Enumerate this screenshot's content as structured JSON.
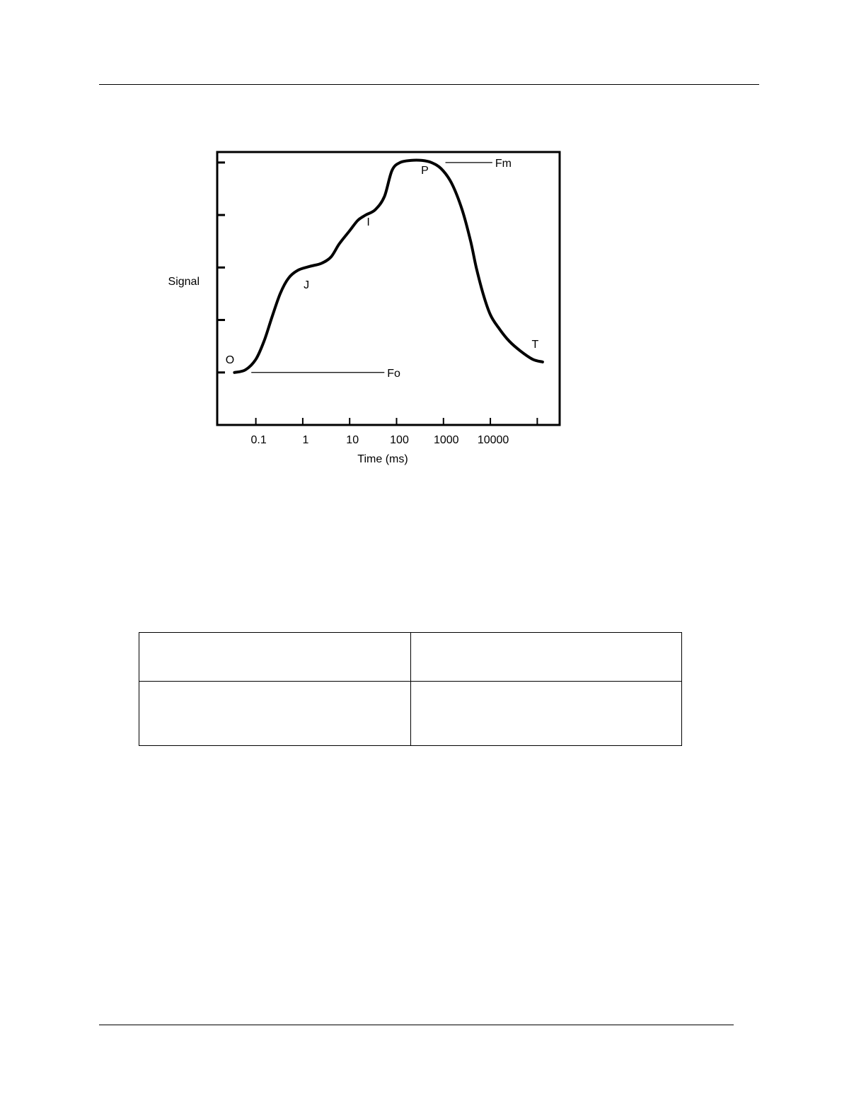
{
  "chart_data": {
    "type": "line",
    "xlabel": "Time (ms)",
    "ylabel": "Signal",
    "x_scale": "log",
    "x_ticks": [
      "0.1",
      "1",
      "10",
      "100",
      "1000",
      "10000"
    ],
    "x_tick_values": [
      0.1,
      1,
      10,
      100,
      1000,
      10000
    ],
    "xlim": [
      0.015,
      300000
    ],
    "y_ticks": [
      1,
      2,
      3,
      4,
      5
    ],
    "ylim": [
      0,
      5.2
    ],
    "grid": false,
    "series": [
      {
        "points": [
          [
            0.035,
            1.0
          ],
          [
            0.06,
            1.05
          ],
          [
            0.1,
            1.25
          ],
          [
            0.15,
            1.6
          ],
          [
            0.22,
            2.05
          ],
          [
            0.33,
            2.5
          ],
          [
            0.5,
            2.8
          ],
          [
            0.8,
            2.95
          ],
          [
            1.4,
            3.02
          ],
          [
            2.5,
            3.08
          ],
          [
            4,
            3.2
          ],
          [
            6,
            3.45
          ],
          [
            10,
            3.7
          ],
          [
            15,
            3.9
          ],
          [
            22,
            4.0
          ],
          [
            35,
            4.1
          ],
          [
            55,
            4.35
          ],
          [
            80,
            4.85
          ],
          [
            120,
            5.0
          ],
          [
            200,
            5.04
          ],
          [
            350,
            5.04
          ],
          [
            550,
            5.0
          ],
          [
            900,
            4.88
          ],
          [
            1500,
            4.6
          ],
          [
            2500,
            4.1
          ],
          [
            3800,
            3.5
          ],
          [
            5000,
            3.0
          ],
          [
            7000,
            2.5
          ],
          [
            10000,
            2.1
          ],
          [
            15000,
            1.85
          ],
          [
            25000,
            1.6
          ],
          [
            45000,
            1.4
          ],
          [
            80000,
            1.25
          ],
          [
            130000,
            1.2
          ]
        ]
      }
    ],
    "point_labels": [
      {
        "text": "O",
        "x": 0.028,
        "y": 1.17
      },
      {
        "text": "J",
        "x": 1.2,
        "y": 2.6
      },
      {
        "text": "I",
        "x": 25,
        "y": 3.8
      },
      {
        "text": "P",
        "x": 400,
        "y": 4.78
      },
      {
        "text": "T",
        "x": 90000,
        "y": 1.47
      }
    ],
    "annotations": [
      {
        "text": "Fo",
        "from": [
          0.08,
          1.0
        ],
        "to": [
          55,
          1.0
        ]
      },
      {
        "text": "Fm",
        "from": [
          1100,
          5.0
        ],
        "to": [
          11000,
          5.0
        ]
      }
    ]
  }
}
